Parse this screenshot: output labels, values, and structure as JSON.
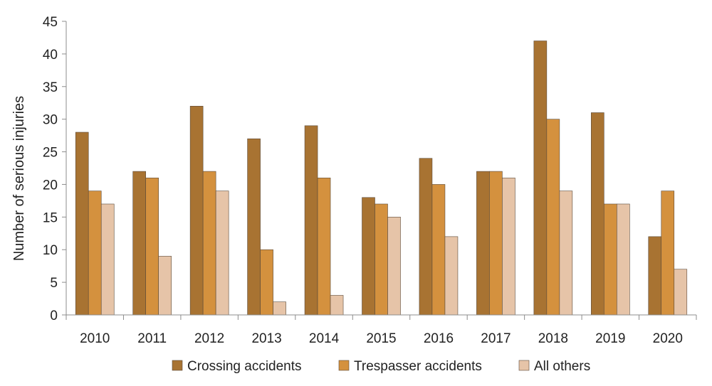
{
  "chart_data": {
    "type": "bar",
    "title": "",
    "xlabel": "",
    "ylabel": "Number of serious injuries",
    "ylim": [
      0,
      45
    ],
    "yticks": [
      0,
      5,
      10,
      15,
      20,
      25,
      30,
      35,
      40,
      45
    ],
    "grid": false,
    "legend_position": "bottom",
    "categories": [
      "2010",
      "2011",
      "2012",
      "2013",
      "2014",
      "2015",
      "2016",
      "2017",
      "2018",
      "2019",
      "2020"
    ],
    "series": [
      {
        "name": "Crossing accidents",
        "color": "#A87332",
        "values": [
          28,
          22,
          32,
          27,
          29,
          18,
          24,
          22,
          42,
          31,
          12
        ]
      },
      {
        "name": "Trespasser accidents",
        "color": "#D4913E",
        "values": [
          19,
          21,
          22,
          10,
          21,
          17,
          20,
          22,
          30,
          17,
          19
        ]
      },
      {
        "name": "All others",
        "color": "#E6C4A8",
        "values": [
          17,
          9,
          19,
          2,
          3,
          15,
          12,
          21,
          19,
          17,
          7
        ]
      }
    ]
  }
}
